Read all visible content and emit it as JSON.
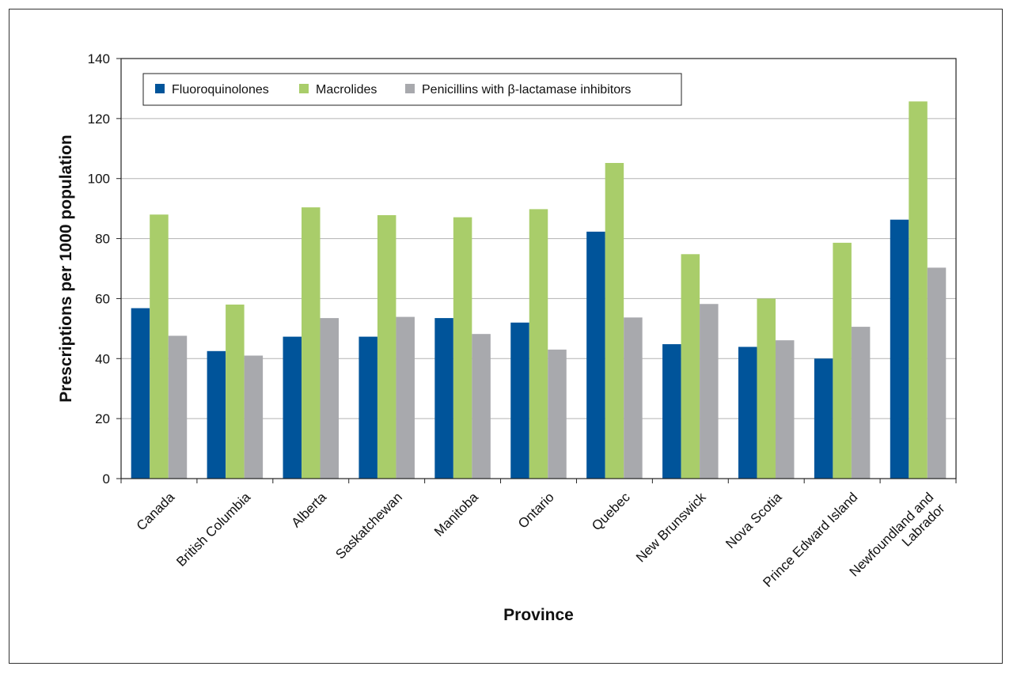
{
  "chart_data": {
    "type": "bar",
    "title": "",
    "xlabel": "Province",
    "ylabel": "Prescriptions per 1000 population",
    "ylim": [
      0,
      140
    ],
    "yticks": [
      0,
      20,
      40,
      60,
      80,
      100,
      120,
      140
    ],
    "grid": true,
    "legend_position": "top-left",
    "categories": [
      [
        "Canada"
      ],
      [
        "British Columbia"
      ],
      [
        "Alberta"
      ],
      [
        "Saskatchewan"
      ],
      [
        "Manitoba"
      ],
      [
        "Ontario"
      ],
      [
        "Quebec"
      ],
      [
        "New Brunswick"
      ],
      [
        "Nova Scotia"
      ],
      [
        "Prince Edward Island"
      ],
      [
        "Newfoundland and",
        "Labrador"
      ]
    ],
    "series": [
      {
        "name": "Fluoroquinolones",
        "color": "#00549a",
        "values": [
          56.8,
          42.5,
          47.3,
          47.3,
          53.5,
          52.0,
          82.3,
          44.8,
          43.9,
          40.0,
          86.3
        ]
      },
      {
        "name": "Macrolides",
        "color": "#a9cd6a",
        "values": [
          88.0,
          58.0,
          90.4,
          87.8,
          87.1,
          89.8,
          105.2,
          74.8,
          60.0,
          78.6,
          125.7
        ]
      },
      {
        "name": "Penicillins with β-lactamase inhibitors",
        "color": "#a8a9ad",
        "values": [
          47.6,
          41.0,
          53.5,
          53.9,
          48.2,
          43.0,
          53.7,
          58.2,
          46.1,
          50.6,
          70.3
        ]
      }
    ]
  }
}
